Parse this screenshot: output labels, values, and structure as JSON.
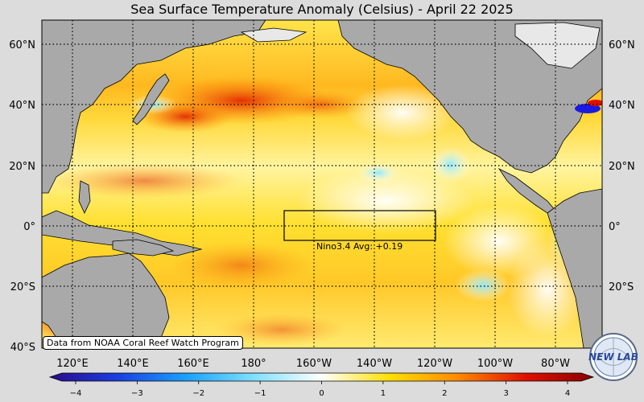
{
  "title": "Sea Surface Temperature Anomaly (Celsius) - April 22 2025",
  "lat_labels": [
    "60°N",
    "40°N",
    "20°N",
    "0°",
    "20°S",
    "40°S"
  ],
  "lon_labels": [
    "120°E",
    "140°E",
    "160°E",
    "180°",
    "160°W",
    "140°W",
    "120°W",
    "100°W",
    "80°W"
  ],
  "colorbar": {
    "ticks": [
      "−4",
      "−3",
      "−2",
      "−1",
      "0",
      "1",
      "2",
      "3",
      "4"
    ],
    "min": -4,
    "max": 4,
    "colors": [
      "#2a0a8a",
      "#1a3fe0",
      "#1aa0ff",
      "#7fe0ff",
      "#ffffff",
      "#ffe000",
      "#ff8a00",
      "#e01000",
      "#8a0000"
    ]
  },
  "nino_box": {
    "label": "Nino3.4 Avg: +0.19",
    "region": "170°W–120°W, 5°S–5°N"
  },
  "credit": "Data from NOAA Coral Reef Watch Program",
  "logo_text": "NEW LAB",
  "colors": {
    "land": "#a9a9a9",
    "ice": "#e8e8e8",
    "background": "#dcdcdc"
  }
}
